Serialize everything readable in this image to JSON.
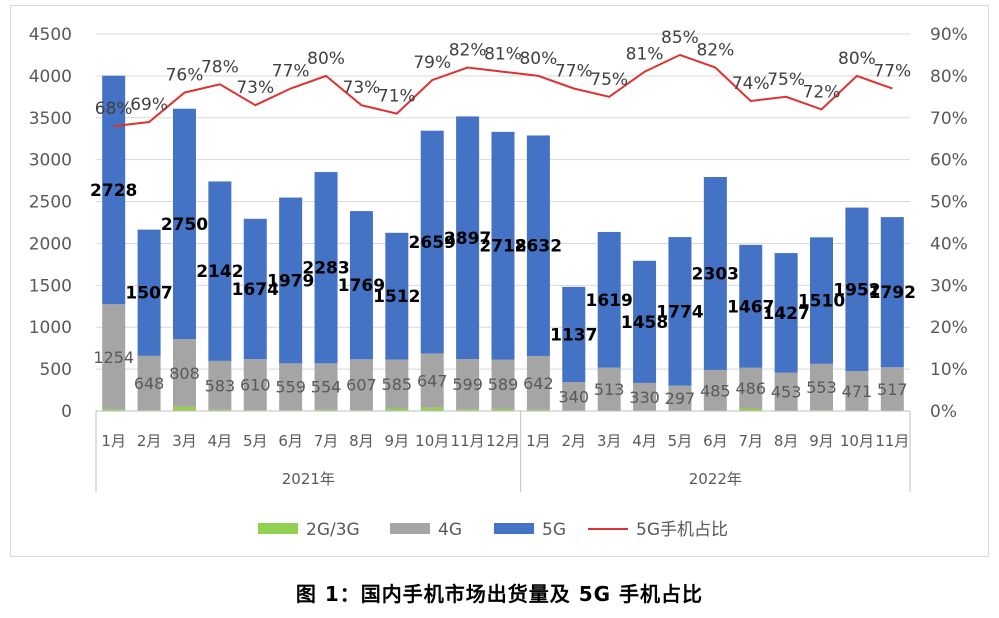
{
  "caption": "图 1：国内手机市场出货量及 5G 手机占比",
  "chart_data": {
    "type": "bar",
    "stacked": true,
    "categories": [
      "1月",
      "2月",
      "3月",
      "4月",
      "5月",
      "6月",
      "7月",
      "8月",
      "9月",
      "10月",
      "11月",
      "12月",
      "1月",
      "2月",
      "3月",
      "4月",
      "5月",
      "6月",
      "7月",
      "8月",
      "9月",
      "10月",
      "11月"
    ],
    "year_groups": [
      {
        "label": "2021年",
        "count": 12
      },
      {
        "label": "2022年",
        "count": 11
      }
    ],
    "series": [
      {
        "name": "2G/3G",
        "kind": "bar",
        "color": "#92d050",
        "values": [
          20,
          10,
          50,
          15,
          10,
          10,
          15,
          10,
          30,
          40,
          20,
          25,
          15,
          5,
          5,
          5,
          5,
          5,
          30,
          5,
          10,
          5,
          5
        ]
      },
      {
        "name": "4G",
        "kind": "bar",
        "color": "#a5a5a5",
        "values": [
          1254,
          648,
          808,
          583,
          610,
          559,
          554,
          607,
          585,
          647,
          599,
          589,
          642,
          340,
          513,
          330,
          297,
          485,
          486,
          453,
          553,
          471,
          517
        ]
      },
      {
        "name": "5G",
        "kind": "bar",
        "color": "#4472c4",
        "values": [
          2728,
          1507,
          2750,
          2142,
          1674,
          1979,
          2283,
          1769,
          1512,
          2659,
          2897,
          2718,
          2632,
          1137,
          1619,
          1458,
          1774,
          2303,
          1467,
          1427,
          1510,
          1952,
          1792
        ]
      },
      {
        "name": "5G手机占比",
        "kind": "line",
        "axis": "right",
        "color": "#e03131",
        "values": [
          68,
          69,
          76,
          78,
          73,
          77,
          80,
          73,
          71,
          79,
          82,
          81,
          80,
          77,
          75,
          81,
          85,
          82,
          74,
          75,
          72,
          80,
          77
        ]
      }
    ],
    "label_4g": [
      "1254",
      "648",
      "808",
      "583",
      "610",
      "559",
      "554",
      "607",
      "585",
      "647",
      "599",
      "589",
      "642",
      "340",
      "513",
      "330",
      "297",
      "485",
      "486",
      "453",
      "553",
      "471",
      "517"
    ],
    "label_5g": [
      "2728",
      "1507",
      "2750",
      "2142",
      "1674",
      "1979",
      "2283",
      "1769",
      "1512",
      "2659",
      "2897",
      "2718",
      "2632",
      "1137",
      "1619",
      "1458",
      "1774",
      "2303",
      "1467",
      "1427",
      "1510",
      "1952",
      "1792"
    ],
    "label_pct": [
      "68%",
      "69%",
      "76%",
      "78%",
      "73%",
      "77%",
      "80%",
      "73%",
      "71%",
      "79%",
      "82%",
      "81%",
      "80%",
      "77%",
      "75%",
      "81%",
      "85%",
      "82%",
      "74%",
      "75%",
      "72%",
      "80%",
      "77%"
    ],
    "y_left": {
      "min": 0,
      "max": 4500,
      "ticks": [
        "0",
        "500",
        "1000",
        "1500",
        "2000",
        "2500",
        "3000",
        "3500",
        "4000",
        "4500"
      ]
    },
    "y_right": {
      "min": 0,
      "max": 90,
      "ticks": [
        "0%",
        "10%",
        "20%",
        "30%",
        "40%",
        "50%",
        "60%",
        "70%",
        "80%",
        "90%"
      ]
    },
    "grid": true,
    "legend_position": "bottom"
  }
}
